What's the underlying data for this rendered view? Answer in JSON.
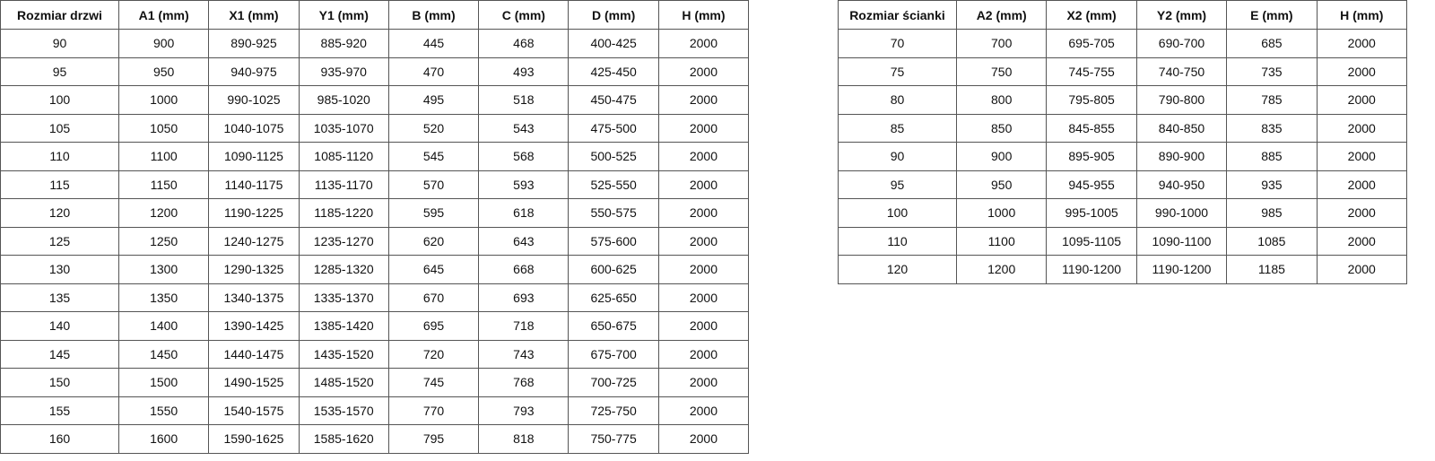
{
  "door_table": {
    "headers": [
      "Rozmiar drzwi",
      "A1 (mm)",
      "X1 (mm)",
      "Y1 (mm)",
      "B (mm)",
      "C (mm)",
      "D (mm)",
      "H (mm)"
    ],
    "rows": [
      [
        "90",
        "900",
        "890-925",
        "885-920",
        "445",
        "468",
        "400-425",
        "2000"
      ],
      [
        "95",
        "950",
        "940-975",
        "935-970",
        "470",
        "493",
        "425-450",
        "2000"
      ],
      [
        "100",
        "1000",
        "990-1025",
        "985-1020",
        "495",
        "518",
        "450-475",
        "2000"
      ],
      [
        "105",
        "1050",
        "1040-1075",
        "1035-1070",
        "520",
        "543",
        "475-500",
        "2000"
      ],
      [
        "110",
        "1100",
        "1090-1125",
        "1085-1120",
        "545",
        "568",
        "500-525",
        "2000"
      ],
      [
        "115",
        "1150",
        "1140-1175",
        "1135-1170",
        "570",
        "593",
        "525-550",
        "2000"
      ],
      [
        "120",
        "1200",
        "1190-1225",
        "1185-1220",
        "595",
        "618",
        "550-575",
        "2000"
      ],
      [
        "125",
        "1250",
        "1240-1275",
        "1235-1270",
        "620",
        "643",
        "575-600",
        "2000"
      ],
      [
        "130",
        "1300",
        "1290-1325",
        "1285-1320",
        "645",
        "668",
        "600-625",
        "2000"
      ],
      [
        "135",
        "1350",
        "1340-1375",
        "1335-1370",
        "670",
        "693",
        "625-650",
        "2000"
      ],
      [
        "140",
        "1400",
        "1390-1425",
        "1385-1420",
        "695",
        "718",
        "650-675",
        "2000"
      ],
      [
        "145",
        "1450",
        "1440-1475",
        "1435-1520",
        "720",
        "743",
        "675-700",
        "2000"
      ],
      [
        "150",
        "1500",
        "1490-1525",
        "1485-1520",
        "745",
        "768",
        "700-725",
        "2000"
      ],
      [
        "155",
        "1550",
        "1540-1575",
        "1535-1570",
        "770",
        "793",
        "725-750",
        "2000"
      ],
      [
        "160",
        "1600",
        "1590-1625",
        "1585-1620",
        "795",
        "818",
        "750-775",
        "2000"
      ]
    ]
  },
  "wall_table": {
    "headers": [
      "Rozmiar ścianki",
      "A2 (mm)",
      "X2 (mm)",
      "Y2 (mm)",
      "E (mm)",
      "H (mm)"
    ],
    "rows": [
      [
        "70",
        "700",
        "695-705",
        "690-700",
        "685",
        "2000"
      ],
      [
        "75",
        "750",
        "745-755",
        "740-750",
        "735",
        "2000"
      ],
      [
        "80",
        "800",
        "795-805",
        "790-800",
        "785",
        "2000"
      ],
      [
        "85",
        "850",
        "845-855",
        "840-850",
        "835",
        "2000"
      ],
      [
        "90",
        "900",
        "895-905",
        "890-900",
        "885",
        "2000"
      ],
      [
        "95",
        "950",
        "945-955",
        "940-950",
        "935",
        "2000"
      ],
      [
        "100",
        "1000",
        "995-1005",
        "990-1000",
        "985",
        "2000"
      ],
      [
        "110",
        "1100",
        "1095-1105",
        "1090-1100",
        "1085",
        "2000"
      ],
      [
        "120",
        "1200",
        "1190-1200",
        "1190-1200",
        "1185",
        "2000"
      ]
    ]
  }
}
